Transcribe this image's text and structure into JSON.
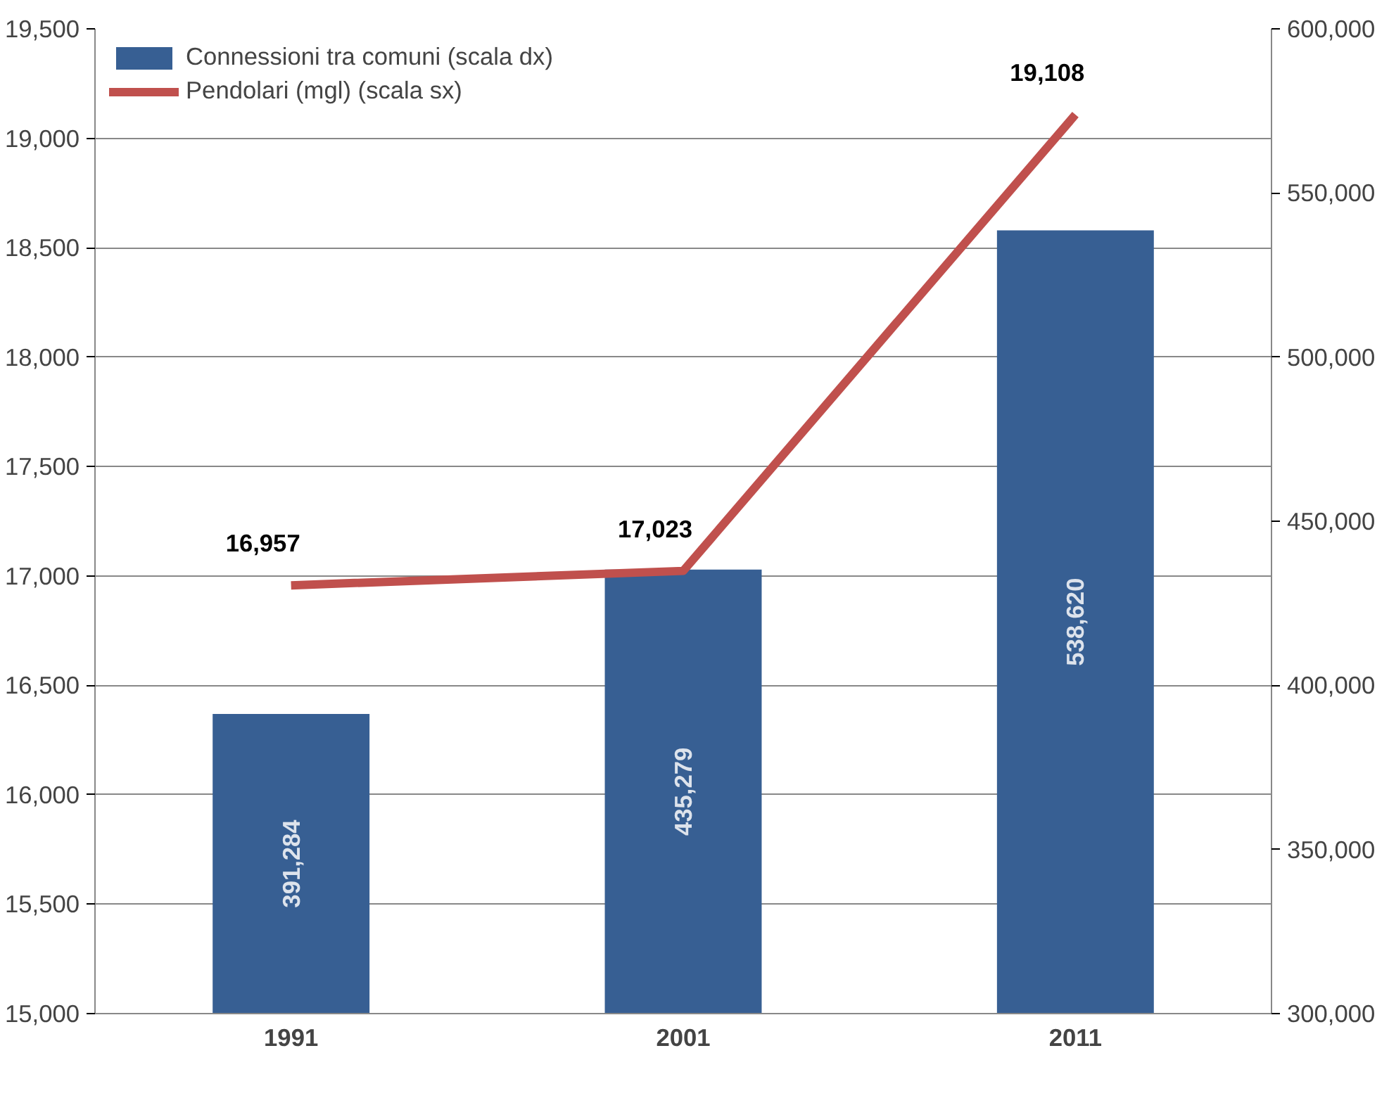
{
  "chart_data": {
    "type": "bar",
    "categories": [
      "1991",
      "2001",
      "2011"
    ],
    "series": [
      {
        "name": "Connessioni tra comuni (scala dx)",
        "axis": "y2",
        "color": "#375f93",
        "values": [
          391284,
          435279,
          538620
        ],
        "value_labels": [
          "391,284",
          "435,279",
          "538,620"
        ]
      },
      {
        "name": "Pendolari (mgl) (scala sx)",
        "type": "line",
        "color": "#c0504d",
        "values": [
          16957,
          17023,
          19108
        ],
        "value_labels": [
          "16,957",
          "17,023",
          "19,108"
        ]
      }
    ],
    "ylim": [
      15000,
      19500
    ],
    "yticks": [
      {
        "value": 15000,
        "label": "15,000"
      },
      {
        "value": 15500,
        "label": "15,500"
      },
      {
        "value": 16000,
        "label": "16,000"
      },
      {
        "value": 16500,
        "label": "16,500"
      },
      {
        "value": 17000,
        "label": "17,000"
      },
      {
        "value": 17500,
        "label": "17,500"
      },
      {
        "value": 18000,
        "label": "18,000"
      },
      {
        "value": 18500,
        "label": "18,500"
      },
      {
        "value": 19000,
        "label": "19,000"
      },
      {
        "value": 19500,
        "label": "19,500"
      }
    ],
    "y2lim": [
      300000,
      600000
    ],
    "y2ticks": [
      {
        "value": 300000,
        "label": "300,000"
      },
      {
        "value": 350000,
        "label": "350,000"
      },
      {
        "value": 400000,
        "label": "400,000"
      },
      {
        "value": 450000,
        "label": "450,000"
      },
      {
        "value": 500000,
        "label": "500,000"
      },
      {
        "value": 550000,
        "label": "550,000"
      },
      {
        "value": 600000,
        "label": "600,000"
      }
    ],
    "grid": "y",
    "legend": "top left"
  }
}
